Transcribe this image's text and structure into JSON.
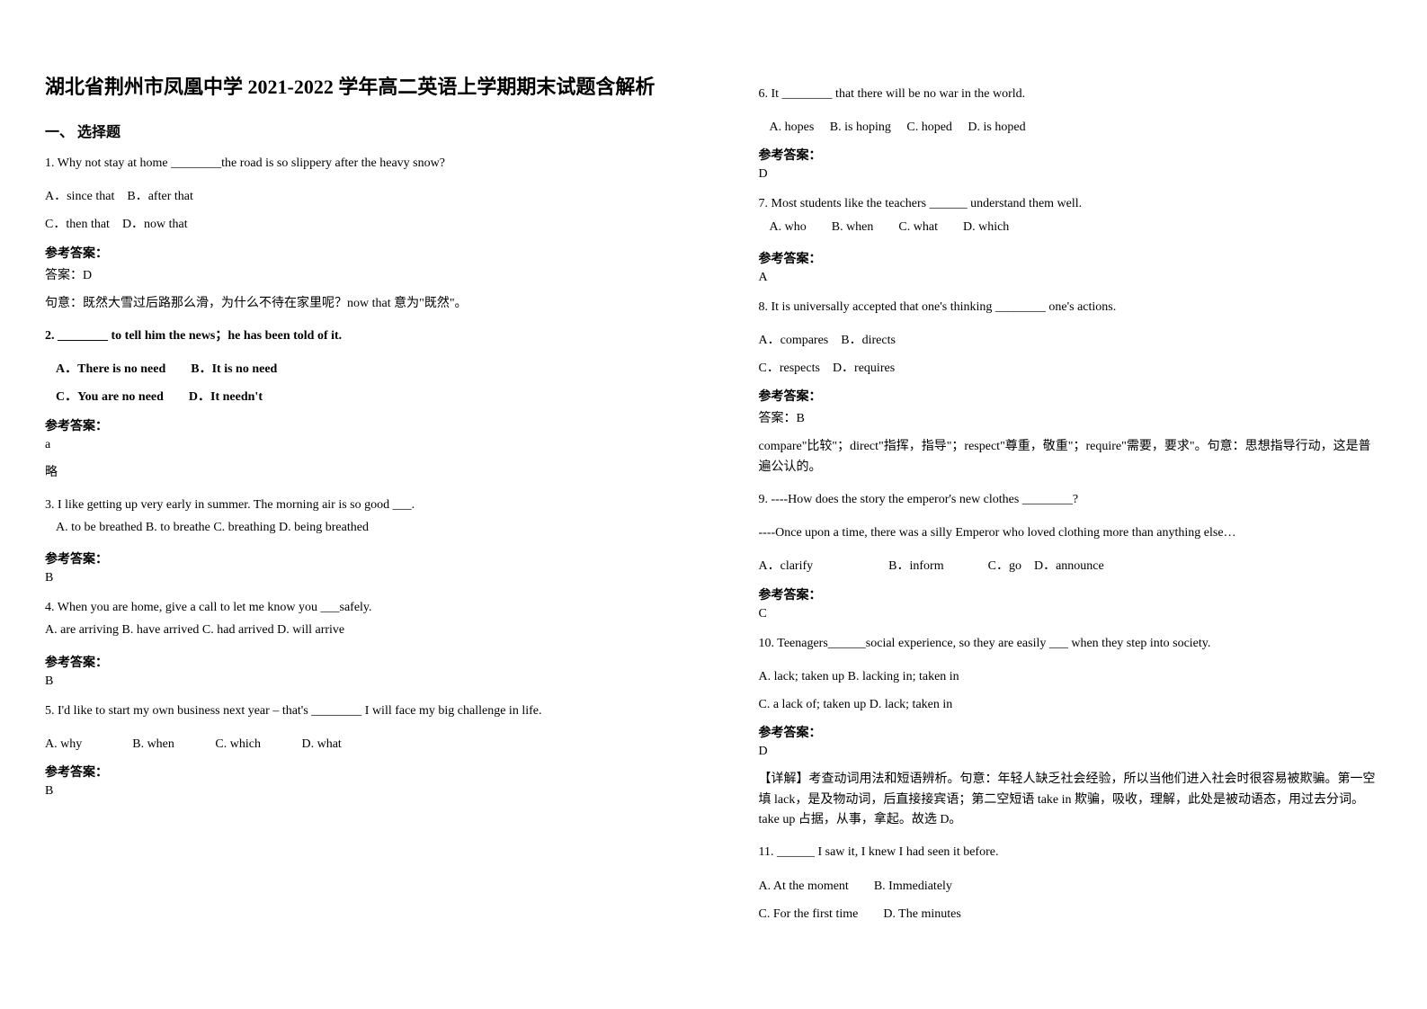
{
  "left": {
    "title": "湖北省荆州市凤凰中学 2021-2022 学年高二英语上学期期末试题含解析",
    "section1": "一、 选择题",
    "q1": {
      "text": "1. Why not stay at home ________the road is so slippery after the heavy snow?",
      "optA": "A．since that",
      "optB": "B．after that",
      "optC": "C．then that",
      "optD": "D．now that",
      "answer_label": "参考答案：",
      "answer": "答案：D",
      "explain": "句意：既然大雪过后路那么滑，为什么不待在家里呢？now that 意为\"既然\"。"
    },
    "q2": {
      "text": "2. ________ to tell him the news；he has been told of it.",
      "optA": "A．There is no need",
      "optB": "B．It is no need",
      "optC": "C．You are no need",
      "optD": "D．It needn't",
      "answer_label": "参考答案：",
      "answer": "a",
      "explain": "略"
    },
    "q3": {
      "text": "3. I like getting up very early in summer. The morning air is so good ___.",
      "opts": "A. to be breathed  B. to breathe  C. breathing  D. being breathed",
      "answer_label": "参考答案：",
      "answer": "B"
    },
    "q4": {
      "text": "4. When you are home, give a call to let me know you ___safely.",
      "opts": "A. are arriving B. have arrived C. had arrived  D. will arrive",
      "answer_label": "参考答案：",
      "answer": "B"
    },
    "q5": {
      "text": "5. I'd like to start my own business next year – that's ________ I will face my big challenge in life.",
      "optA": "A. why",
      "optB": "B. when",
      "optC": "C. which",
      "optD": "D. what",
      "answer_label": "参考答案：",
      "answer": "B"
    }
  },
  "right": {
    "q6": {
      "text": "6. It ________ that there will be no war in the world.",
      "optA": "A. hopes",
      "optB": "B. is hoping",
      "optC": "C. hoped",
      "optD": "D. is hoped",
      "answer_label": "参考答案：",
      "answer": "D"
    },
    "q7": {
      "text": "7. Most students like the teachers ______ understand them well.",
      "optA": "A. who",
      "optB": "B. when",
      "optC": "C. what",
      "optD": "D. which",
      "answer_label": "参考答案：",
      "answer": "A"
    },
    "q8": {
      "text": "8. It is universally accepted that one's thinking ________ one's actions.",
      "optA": "A．compares",
      "optB": "B．directs",
      "optC": "C．respects",
      "optD": "D．requires",
      "answer_label": "参考答案：",
      "answer": "答案：B",
      "explain": "compare\"比较\"；direct\"指挥，指导\"；respect\"尊重，敬重\"；require\"需要，要求\"。句意：思想指导行动，这是普遍公认的。"
    },
    "q9": {
      "text": "9. ----How does the story the emperor's new clothes ________?",
      "text2": "----Once upon a time, there was a silly Emperor who loved clothing more than anything else…",
      "optA": "A．clarify",
      "optB": "B．inform",
      "optC": "C．go",
      "optD": "D．announce",
      "answer_label": "参考答案：",
      "answer": "C"
    },
    "q10": {
      "text": "10. Teenagers______social experience, so they are easily ___ when they step into society.",
      "optsA": "A. lack; taken up    B. lacking in; taken in",
      "optsC": "C. a lack of; taken up    D. lack; taken in",
      "answer_label": "参考答案：",
      "answer": "D",
      "explain": "【详解】考查动词用法和短语辨析。句意：年轻人缺乏社会经验，所以当他们进入社会时很容易被欺骗。第一空填 lack，是及物动词，后直接接宾语；第二空短语 take in 欺骗，吸收，理解，此处是被动语态，用过去分词。take up 占据，从事，拿起。故选 D。"
    },
    "q11": {
      "text": "11. ______ I saw it, I knew I had seen it before.",
      "optA": "A. At the moment",
      "optB": "B. Immediately",
      "optC": "C. For the first time",
      "optD": "D. The minutes"
    }
  }
}
